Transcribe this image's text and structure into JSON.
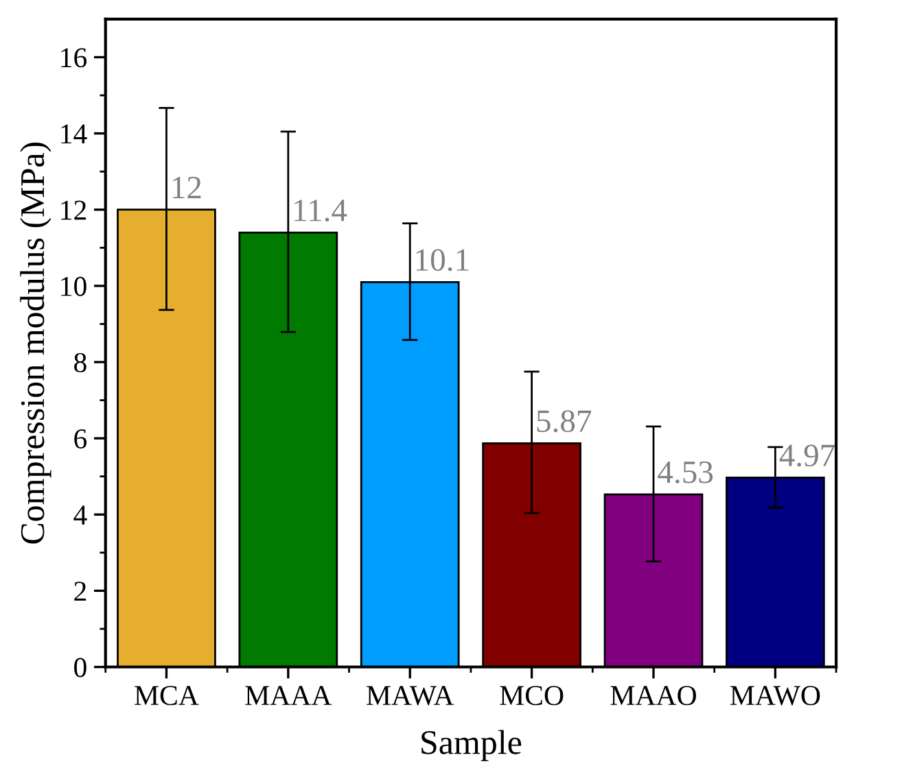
{
  "chart_data": {
    "type": "bar",
    "xlabel": "Sample",
    "ylabel": "Compression modulus (MPa)",
    "categories": [
      "MCA",
      "MAAA",
      "MAWA",
      "MCO",
      "MAAO",
      "MAWO"
    ],
    "values": [
      12,
      11.4,
      10.1,
      5.87,
      4.53,
      4.97
    ],
    "colors": [
      "#e6ae2e",
      "#007a00",
      "#009dff",
      "#800000",
      "#800080",
      "#000080"
    ],
    "errors": [
      [
        9.37,
        14.67
      ],
      [
        8.79,
        14.05
      ],
      [
        8.58,
        11.64
      ],
      [
        4.04,
        7.75
      ],
      [
        2.77,
        6.31
      ],
      [
        4.18,
        5.77
      ]
    ],
    "data_labels": true,
    "ylim": [
      0,
      17
    ],
    "yticks": [
      0,
      2,
      4,
      6,
      8,
      10,
      12,
      14,
      16
    ],
    "grid": false
  }
}
